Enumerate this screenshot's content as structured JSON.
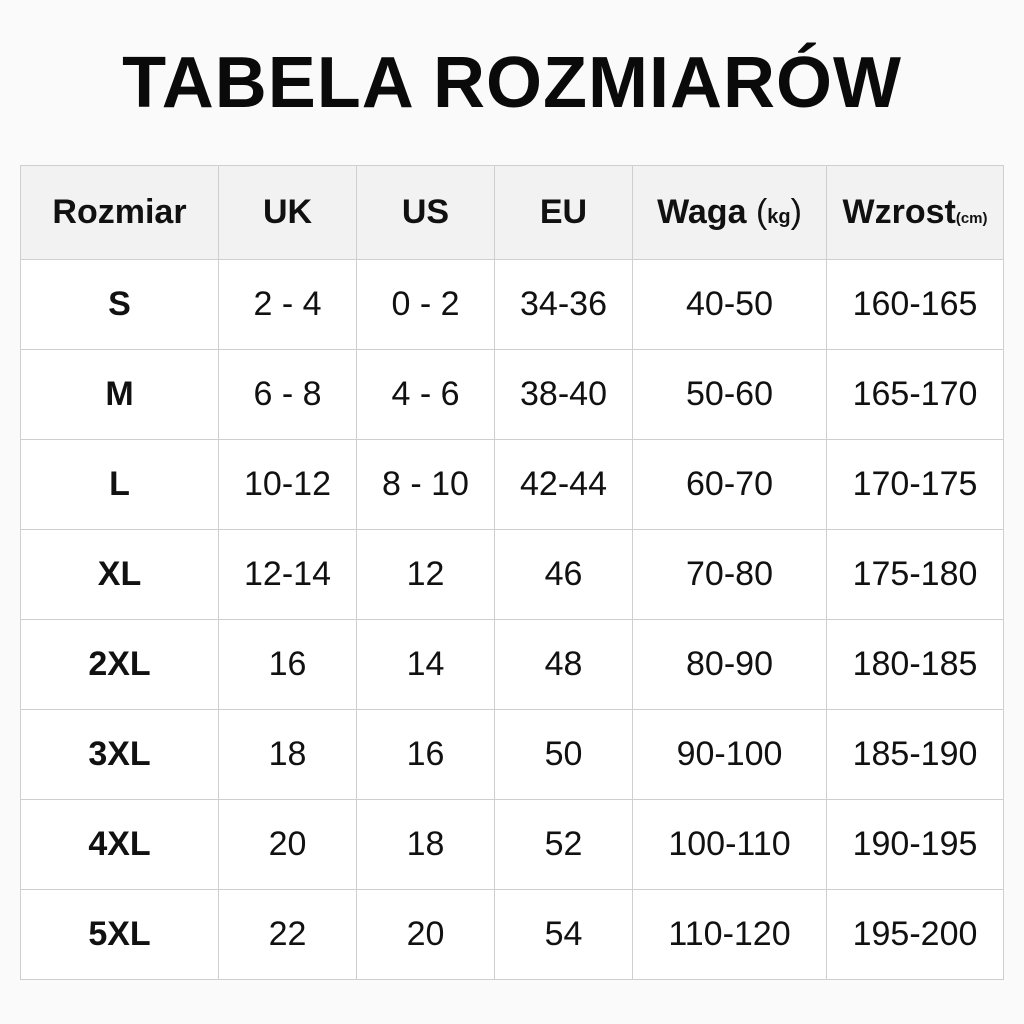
{
  "title": "TABELA ROZMIARÓW",
  "headers": {
    "size": "Rozmiar",
    "uk": "UK",
    "us": "US",
    "eu": "EU",
    "weight": "Waga",
    "weight_unit": "kg",
    "height": "Wzrost",
    "height_unit": "(cm)"
  },
  "rows": [
    [
      "S",
      "2 - 4",
      "0 - 2",
      "34-36",
      "40-50",
      "160-165"
    ],
    [
      "M",
      "6 - 8",
      "4 - 6",
      "38-40",
      "50-60",
      "165-170"
    ],
    [
      "L",
      "10-12",
      "8 - 10",
      "42-44",
      "60-70",
      "170-175"
    ],
    [
      "XL",
      "12-14",
      "12",
      "46",
      "70-80",
      "175-180"
    ],
    [
      "2XL",
      "16",
      "14",
      "48",
      "80-90",
      "180-185"
    ],
    [
      "3XL",
      "18",
      "16",
      "50",
      "90-100",
      "185-190"
    ],
    [
      "4XL",
      "20",
      "18",
      "52",
      "100-110",
      "190-195"
    ],
    [
      "5XL",
      "22",
      "20",
      "54",
      "110-120",
      "195-200"
    ]
  ]
}
